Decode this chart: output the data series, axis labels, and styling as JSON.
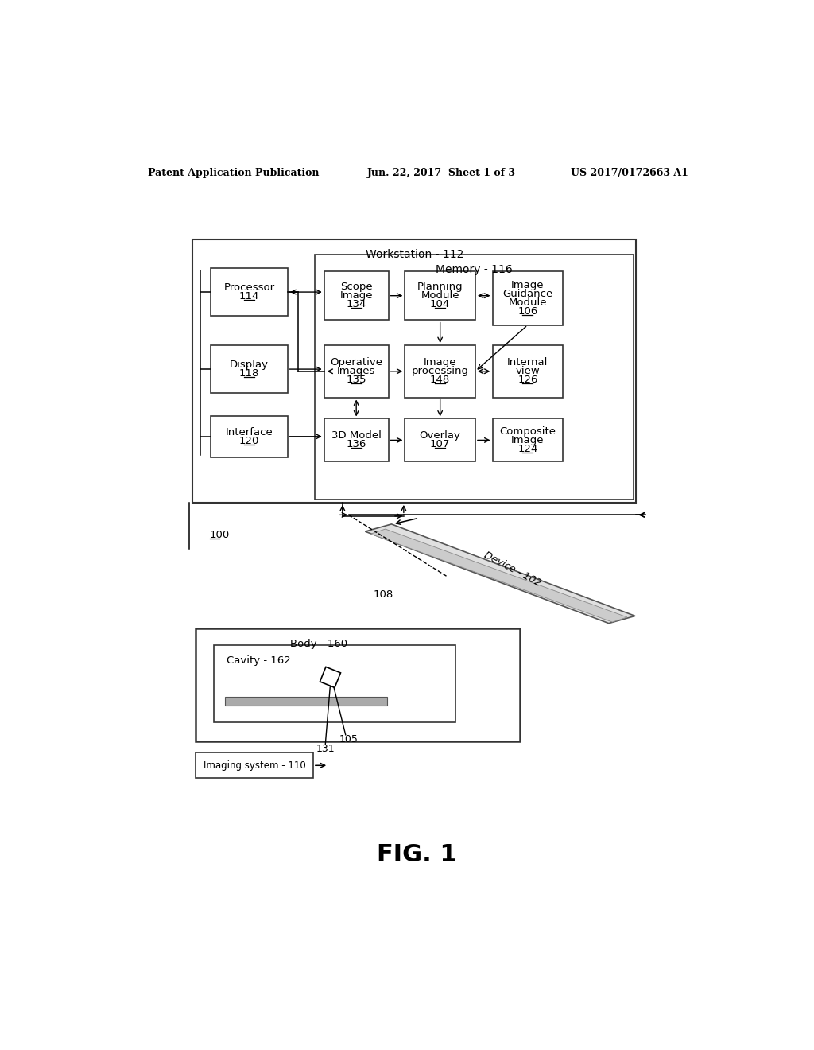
{
  "bg_color": "#ffffff",
  "header_left": "Patent Application Publication",
  "header_center": "Jun. 22, 2017  Sheet 1 of 3",
  "header_right": "US 2017/0172663 A1",
  "fig_label": "FIG. 1",
  "workstation_label": "Workstation - 112",
  "memory_label": "Memory - 116",
  "label_100": "100",
  "label_108": "108",
  "label_body": "Body - 160",
  "label_cavity": "Cavity - 162",
  "label_device": "Device - 102",
  "label_imaging": "Imaging system - 110",
  "label_105": "105",
  "label_131": "131"
}
